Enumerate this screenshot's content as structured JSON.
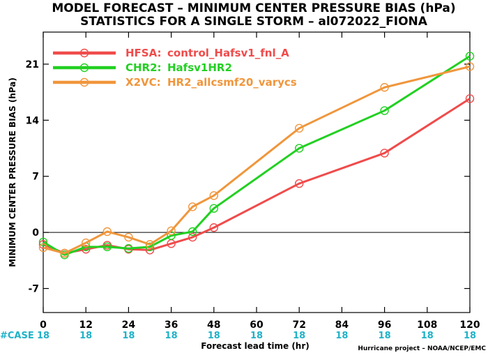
{
  "chart_data": {
    "type": "line",
    "title": "MODEL FORECAST – MINIMUM CENTER PRESSURE BIAS (hPa)",
    "subtitle": "STATISTICS FOR A SINGLE STORM – al072022_FIONA",
    "xlabel": "Forecast lead time (hr)",
    "ylabel": "MINIMUM CENTER PRESSURE BIAS (hPa)",
    "xlim": [
      0,
      120
    ],
    "ylim": [
      -10,
      25
    ],
    "xticks": [
      0,
      12,
      24,
      36,
      48,
      60,
      72,
      84,
      96,
      108,
      120
    ],
    "yticks": [
      -7,
      0,
      7,
      14,
      21
    ],
    "zero_line": true,
    "legend_position": "top-left",
    "series": [
      {
        "name": "HFSA:",
        "desc": "control_Hafsv1_fnl_A",
        "color": "#f04b4b",
        "x": [
          0,
          6,
          12,
          18,
          24,
          30,
          36,
          42,
          48,
          72,
          96,
          120
        ],
        "y": [
          -1.5,
          -2.6,
          -2.1,
          -1.6,
          -2.1,
          -2.2,
          -1.4,
          -0.6,
          0.6,
          6.1,
          9.9,
          16.7
        ]
      },
      {
        "name": "CHR2:",
        "desc": "Hafsv1HR2",
        "color": "#22d022",
        "x": [
          0,
          6,
          12,
          18,
          24,
          30,
          36,
          42,
          48,
          72,
          96,
          120
        ],
        "y": [
          -1.2,
          -2.8,
          -1.8,
          -1.8,
          -2.0,
          -1.8,
          -0.4,
          0.1,
          3.0,
          10.5,
          15.2,
          22.0
        ]
      },
      {
        "name": "X2VC:",
        "desc": "HR2_allcsmf20_varycs",
        "color": "#f0963c",
        "x": [
          0,
          6,
          12,
          18,
          24,
          30,
          36,
          42,
          48,
          72,
          96,
          120
        ],
        "y": [
          -1.9,
          -2.6,
          -1.3,
          0.1,
          -0.6,
          -1.5,
          0.2,
          3.2,
          4.6,
          13.0,
          18.1,
          20.7
        ]
      }
    ],
    "case_label": "#CASE",
    "case_counts": [
      "18",
      "18",
      "18",
      "18",
      "18",
      "18",
      "18",
      "18",
      "18",
      "18",
      "18"
    ],
    "credit": "Hurricane project – NOAA/NCEP/EMC"
  }
}
